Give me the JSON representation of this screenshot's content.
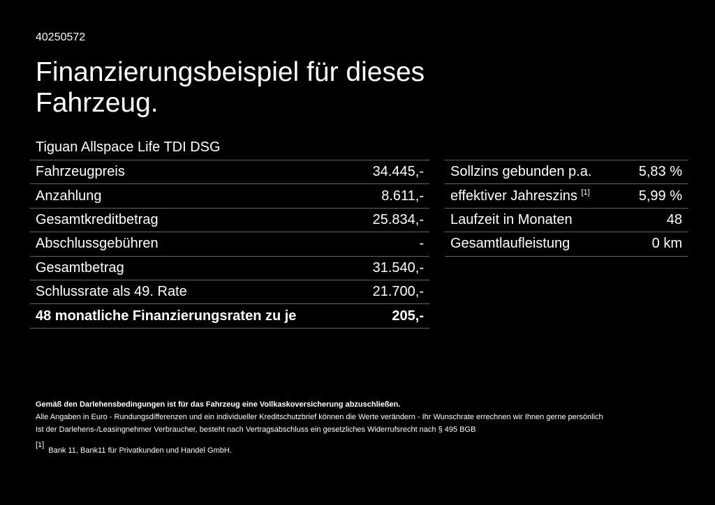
{
  "doc_id": "40250572",
  "title": "Finanzierungsbeispiel für dieses Fahrzeug.",
  "model": "Tiguan Allspace Life TDI DSG",
  "left_rows": [
    {
      "label": "Fahrzeugpreis",
      "value": "34.445,-"
    },
    {
      "label": "Anzahlung",
      "value": "8.611,-"
    },
    {
      "label": "Gesamtkreditbetrag",
      "value": "25.834,-"
    },
    {
      "label": "Abschlussgebühren",
      "value": "-"
    },
    {
      "label": "Gesamtbetrag",
      "value": "31.540,-"
    },
    {
      "label": "Schlussrate als 49. Rate",
      "value": "21.700,-"
    },
    {
      "label": "48 monatliche Finanzierungsraten zu je",
      "value": "205,-"
    }
  ],
  "right_rows": [
    {
      "label": "Sollzins gebunden p.a.",
      "value": "5,83 %"
    },
    {
      "label": "effektiver Jahreszins",
      "sup": "[1]",
      "value": "5,99 %"
    },
    {
      "label": "Laufzeit in Monaten",
      "value": "48"
    },
    {
      "label": "Gesamtlaufleistung",
      "value": "0 km"
    }
  ],
  "footer": {
    "bold": "Gemäß den Darlehensbedingungen ist für das Fahrzeug eine Vollkaskoversicherung abzuschließen.",
    "line1": "Alle Angaben in Euro - Rundungsdifferenzen und ein individueller Kreditschutzbrief können die Werte verändern - Ihr Wunschrate errechnen wir Ihnen gerne persönlich",
    "line2": "Ist der Darlehens-/Leasingnehmer Verbraucher, besteht nach Vertragsabschluss ein gesetzliches Widerrufsrecht nach § 495 BGB",
    "note_mark": "[1]",
    "note": "Bank 11, Bank11 für Privatkunden und Handel GmbH."
  }
}
